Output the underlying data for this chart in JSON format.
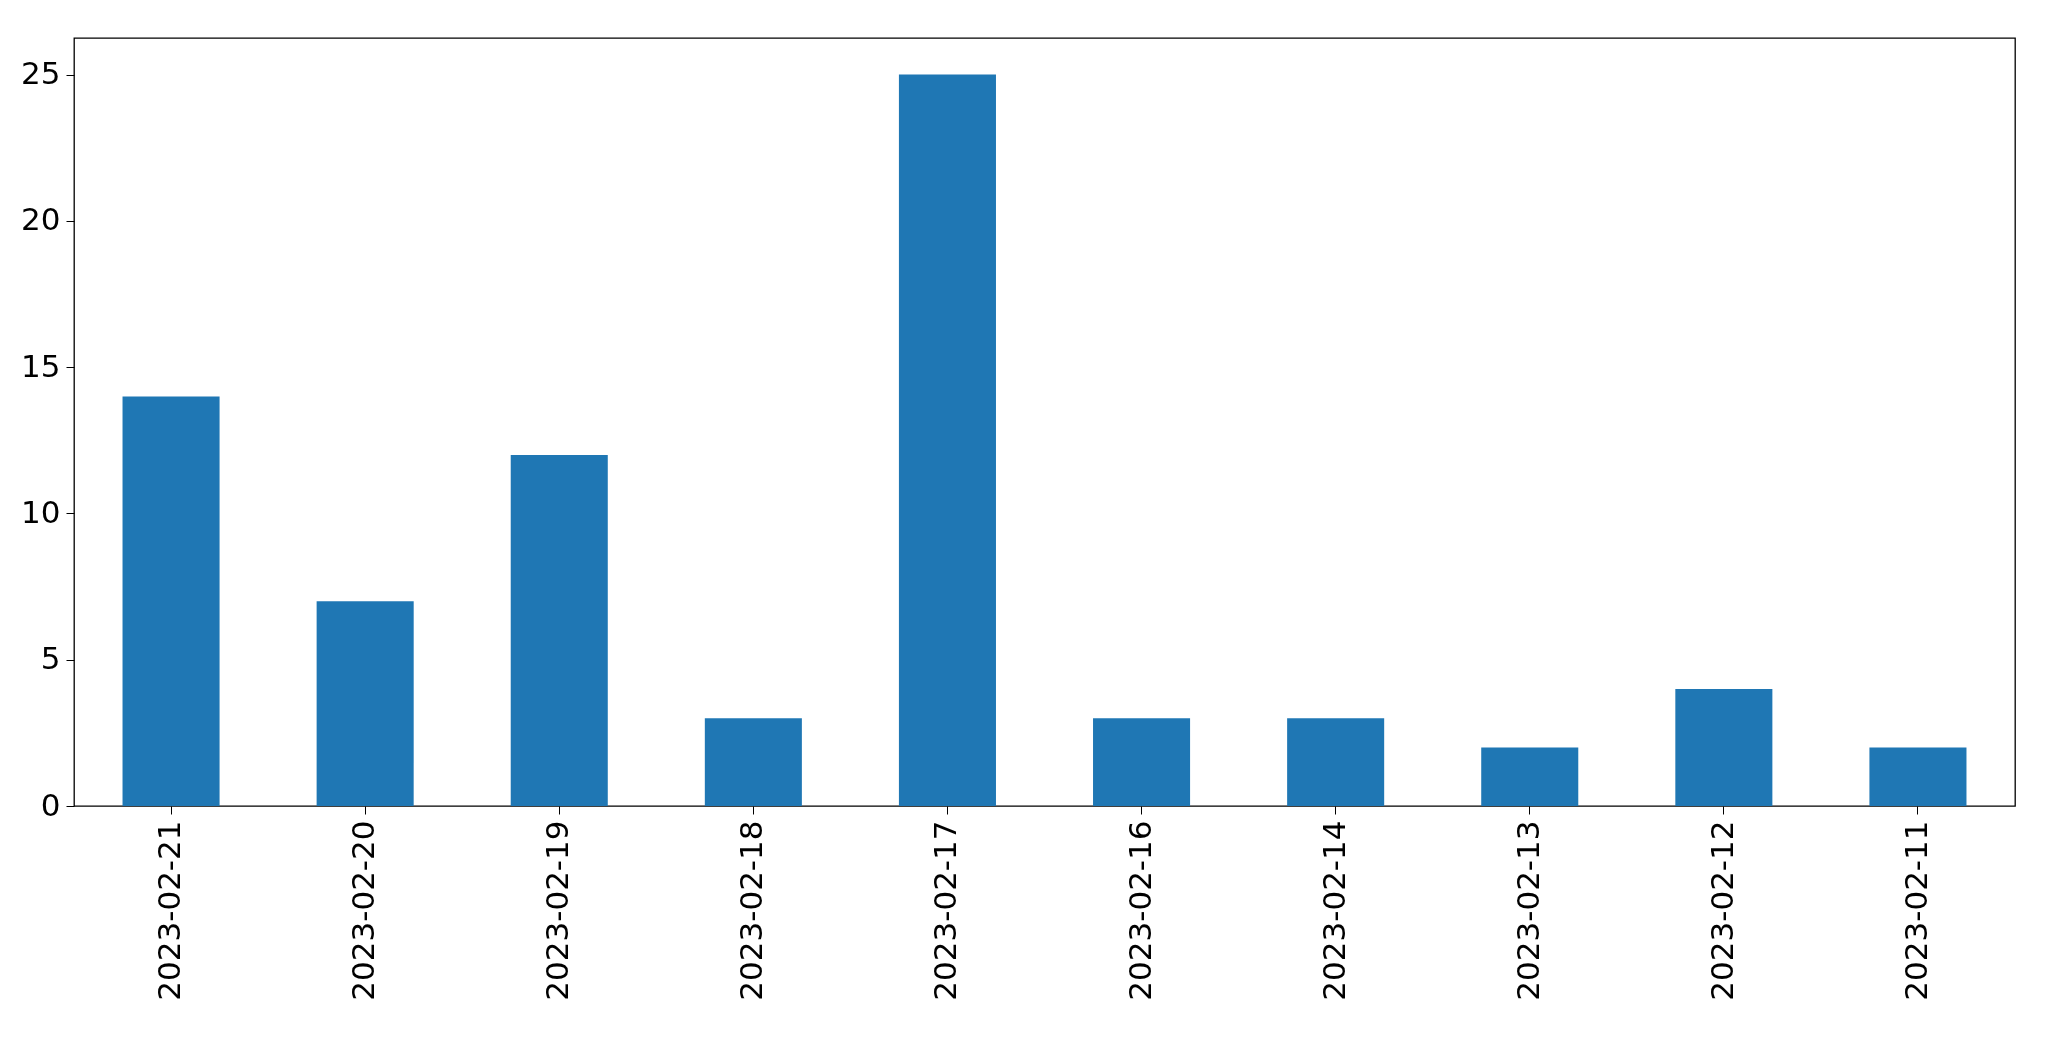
{
  "chart_data": {
    "type": "bar",
    "categories": [
      "2023-02-21",
      "2023-02-20",
      "2023-02-19",
      "2023-02-18",
      "2023-02-17",
      "2023-02-16",
      "2023-02-14",
      "2023-02-13",
      "2023-02-12",
      "2023-02-11"
    ],
    "values": [
      14,
      7,
      12,
      3,
      25,
      3,
      3,
      2,
      4,
      2
    ],
    "color": "#1f77b4",
    "ylim": [
      0,
      26.25
    ],
    "yticks": [
      0,
      5,
      10,
      15,
      20,
      25
    ],
    "grid": false
  }
}
